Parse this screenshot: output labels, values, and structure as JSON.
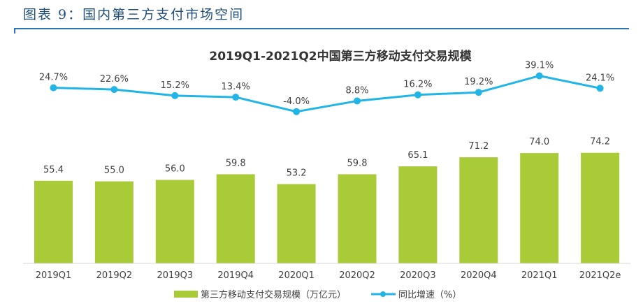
{
  "caption": "图表 9：国内第三方支付市场空间",
  "chart_data": {
    "type": "bar",
    "title": "2019Q1-2021Q2中国第三方移动支付交易规模",
    "categories": [
      "2019Q1",
      "2019Q2",
      "2019Q3",
      "2019Q4",
      "2020Q1",
      "2020Q2",
      "2020Q3",
      "2020Q4",
      "2021Q1",
      "2021Q2e"
    ],
    "bar_labels": [
      "55.4",
      "55.0",
      "56.0",
      "59.8",
      "53.2",
      "59.8",
      "65.1",
      "71.2",
      "74.0",
      "74.2"
    ],
    "line_labels": [
      "24.7%",
      "22.6%",
      "15.2%",
      "13.4%",
      "-4.0%",
      "8.8%",
      "16.2%",
      "19.2%",
      "39.1%",
      "24.1%"
    ],
    "series": [
      {
        "name": "第三方移动支付交易规模（万亿元）",
        "type": "bar",
        "color": "#a9cb38",
        "values": [
          55.4,
          55.0,
          56.0,
          59.8,
          53.2,
          59.8,
          65.1,
          71.2,
          74.0,
          74.2
        ]
      },
      {
        "name": "同比增速（%）",
        "type": "line",
        "color": "#21b5e7",
        "values": [
          24.7,
          22.6,
          15.2,
          13.4,
          -4.0,
          8.8,
          16.2,
          19.2,
          39.1,
          24.1
        ]
      }
    ],
    "grid": false,
    "legend_position": "bottom"
  }
}
